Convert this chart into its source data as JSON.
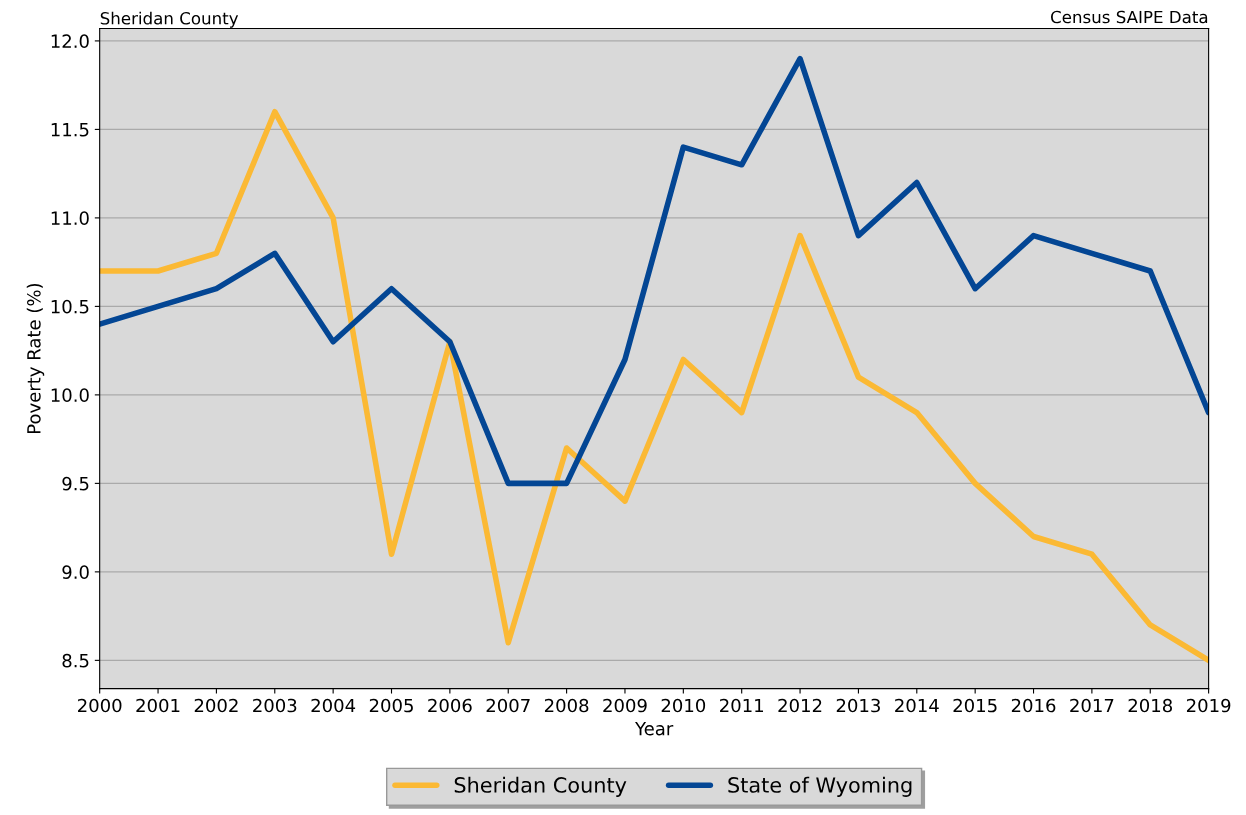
{
  "chart_data": {
    "type": "line",
    "title": "Sheridan County",
    "annotations": [
      "Census SAIPE Data"
    ],
    "xlabel": "Year",
    "ylabel": "Poverty Rate (%)",
    "x": [
      2000,
      2001,
      2002,
      2003,
      2004,
      2005,
      2006,
      2007,
      2008,
      2009,
      2010,
      2011,
      2012,
      2013,
      2014,
      2015,
      2016,
      2017,
      2018,
      2019
    ],
    "series": [
      {
        "name": "Sheridan County",
        "color": "#fbb934",
        "values": [
          10.7,
          10.7,
          10.8,
          11.6,
          11.0,
          9.1,
          10.3,
          8.6,
          9.7,
          9.4,
          10.2,
          9.9,
          10.9,
          10.1,
          9.9,
          9.5,
          9.2,
          9.1,
          8.7,
          8.5
        ]
      },
      {
        "name": "State of Wyoming",
        "color": "#034694",
        "values": [
          10.4,
          10.5,
          10.6,
          10.8,
          10.3,
          10.6,
          10.3,
          9.5,
          9.5,
          10.2,
          11.4,
          11.3,
          11.9,
          10.9,
          11.2,
          10.6,
          10.9,
          10.8,
          10.7,
          9.9
        ]
      }
    ],
    "xlim": [
      2000,
      2019
    ],
    "xticks": [
      2000,
      2001,
      2002,
      2003,
      2004,
      2005,
      2006,
      2007,
      2008,
      2009,
      2010,
      2011,
      2012,
      2013,
      2014,
      2015,
      2016,
      2017,
      2018,
      2019
    ],
    "ylim": [
      8.34,
      12.07
    ],
    "yticks": [
      {
        "value": 8.5,
        "label": "8.5"
      },
      {
        "value": 9.0,
        "label": "9.0"
      },
      {
        "value": 9.5,
        "label": "9.5"
      },
      {
        "value": 10.0,
        "label": "10.0"
      },
      {
        "value": 10.5,
        "label": "10.5"
      },
      {
        "value": 11.0,
        "label": "11.0"
      },
      {
        "value": 11.5,
        "label": "11.5"
      },
      {
        "value": 12.0,
        "label": "12.0"
      }
    ],
    "grid": "y",
    "legend": "bottom",
    "marker": "none",
    "line_style": "solid"
  }
}
